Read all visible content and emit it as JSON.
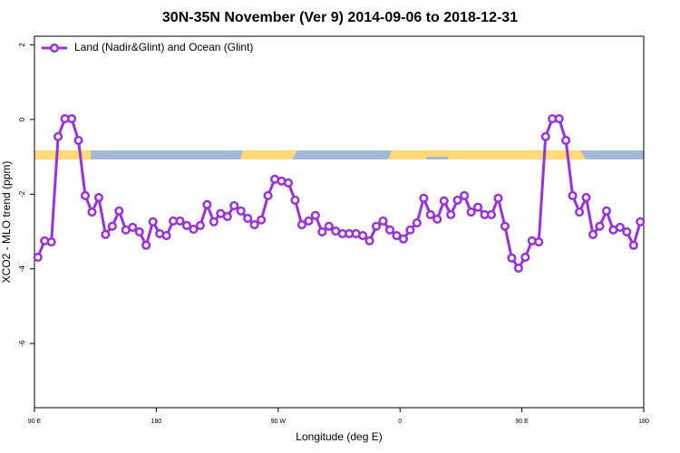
{
  "chart_data": {
    "type": "line",
    "title": "30N-35N November (Ver 9)   2014-09-06 to 2018-12-31",
    "x_label": "Longitude (deg E)",
    "y_label": "XCO2 - MLO trend (ppm)",
    "xlim": [
      90,
      540
    ],
    "ylim": [
      -7.72,
      2.23
    ],
    "xticks": [
      {
        "value": 90,
        "label": "90 E"
      },
      180,
      {
        "value": 270,
        "label": "90 W"
      },
      {
        "value": 360,
        "label": "0"
      },
      {
        "value": 450,
        "label": "90 E"
      },
      {
        "value": 540,
        "label": "180"
      }
    ],
    "yticks": [
      2,
      0,
      -2,
      -4,
      -6
    ],
    "grid": false,
    "legend": "top-left",
    "x": [
      92.5,
      97.5,
      102.5,
      107.5,
      112.5,
      117.5,
      122.5,
      127.5,
      132.5,
      137.5,
      142.5,
      147.5,
      152.5,
      157.5,
      162.5,
      167.5,
      172.5,
      177.5,
      182.5,
      187.5,
      192.5,
      197.5,
      202.5,
      207.5,
      212.5,
      217.5,
      222.5,
      227.5,
      232.5,
      237.5,
      242.5,
      247.5,
      252.5,
      257.5,
      262.5,
      267.5,
      272.5,
      277.5,
      282.5,
      287.5,
      292.5,
      297.5,
      302.5,
      307.5,
      312.5,
      317.5,
      322.5,
      327.5,
      332.5,
      337.5,
      342.5,
      347.5,
      352.5,
      357.5,
      362.5,
      367.5,
      372.5,
      377.5,
      382.5,
      387.5,
      392.5,
      397.5,
      402.5,
      407.5,
      412.5,
      417.5,
      422.5,
      427.5,
      432.5,
      437.5,
      442.5,
      447.5,
      452.5,
      457.5,
      462.5,
      467.5,
      472.5,
      477.5,
      482.5,
      487.5,
      492.5,
      497.5,
      502.5,
      507.5,
      512.5,
      517.5,
      522.5,
      527.5,
      532.5,
      537.5
    ],
    "series": [
      {
        "name": "Land (Nadir&Glint) and Ocean (Glint)",
        "color": "#9b30e0",
        "values": [
          -3.69,
          -3.25,
          -3.28,
          -0.46,
          0.02,
          0.02,
          -0.56,
          -2.04,
          -2.48,
          -2.09,
          -3.08,
          -2.86,
          -2.45,
          -2.96,
          -2.89,
          -3.01,
          -3.37,
          -2.74,
          -3.06,
          -3.11,
          -2.72,
          -2.72,
          -2.84,
          -2.94,
          -2.84,
          -2.28,
          -2.74,
          -2.52,
          -2.6,
          -2.31,
          -2.45,
          -2.65,
          -2.82,
          -2.69,
          -2.04,
          -1.6,
          -1.65,
          -1.7,
          -2.16,
          -2.82,
          -2.72,
          -2.57,
          -3.01,
          -2.86,
          -2.99,
          -3.06,
          -3.06,
          -3.06,
          -3.11,
          -3.25,
          -2.86,
          -2.72,
          -2.96,
          -3.11,
          -3.2,
          -2.96,
          -2.77,
          -2.11,
          -2.55,
          -2.67,
          -2.18,
          -2.55,
          -2.16,
          -2.04,
          -2.48,
          -2.35,
          -2.55,
          -2.55,
          -2.11,
          -2.86,
          -3.71,
          -3.98,
          -3.69,
          -3.25,
          -3.28,
          -0.46,
          0.02,
          0.02,
          -0.56,
          -2.04,
          -2.48,
          -2.09,
          -3.08,
          -2.86,
          -2.45,
          -2.96,
          -2.89,
          -3.01,
          -3.37,
          -2.74
        ]
      }
    ]
  }
}
